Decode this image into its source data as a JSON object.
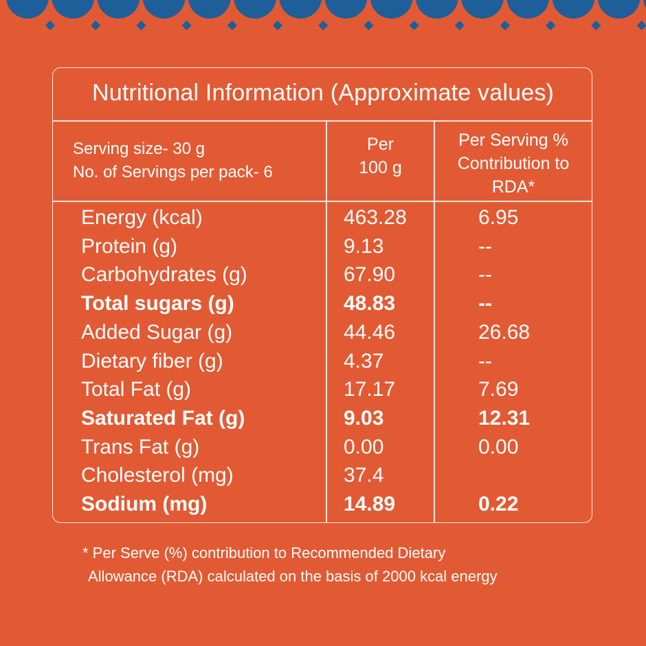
{
  "colors": {
    "background": "#e25a34",
    "decoration": "#1e5f9a",
    "text": "#ffffff"
  },
  "title": "Nutritional Information (Approximate values)",
  "header": {
    "serving_size": "Serving size- 30 g",
    "servings_per_pack": "No. of Servings per pack- 6",
    "per_100g_line1": "Per",
    "per_100g_line2": "100 g",
    "rda_line1": "Per Serving %",
    "rda_line2": "Contribution to",
    "rda_line3": "RDA*"
  },
  "rows": [
    {
      "label": "Energy (kcal)",
      "per100": "463.28",
      "rda": "6.95",
      "bold": false
    },
    {
      "label": "Protein (g)",
      "per100": "9.13",
      "rda": "--",
      "bold": false
    },
    {
      "label": "Carbohydrates (g)",
      "per100": "67.90",
      "rda": "--",
      "bold": false
    },
    {
      "label": "Total sugars (g)",
      "per100": "48.83",
      "rda": "--",
      "bold": true
    },
    {
      "label": "Added Sugar (g)",
      "per100": "44.46",
      "rda": "26.68",
      "bold": false
    },
    {
      "label": "Dietary fiber (g)",
      "per100": "4.37",
      "rda": "--",
      "bold": false
    },
    {
      "label": "Total Fat (g)",
      "per100": "17.17",
      "rda": "7.69",
      "bold": false
    },
    {
      "label": "Saturated Fat (g)",
      "per100": "9.03",
      "rda": "12.31",
      "bold": true
    },
    {
      "label": "Trans Fat (g)",
      "per100": "0.00",
      "rda": "0.00",
      "bold": false
    },
    {
      "label": "Cholesterol (mg)",
      "per100": "37.4",
      "rda": "",
      "bold": false
    },
    {
      "label": "Sodium (mg)",
      "per100": "14.89",
      "rda": "0.22",
      "bold": true
    }
  ],
  "footnote": {
    "line1": "* Per Serve (%) contribution to Recommended Dietary",
    "line2": "Allowance (RDA) calculated on the basis of 2000 kcal energy"
  }
}
